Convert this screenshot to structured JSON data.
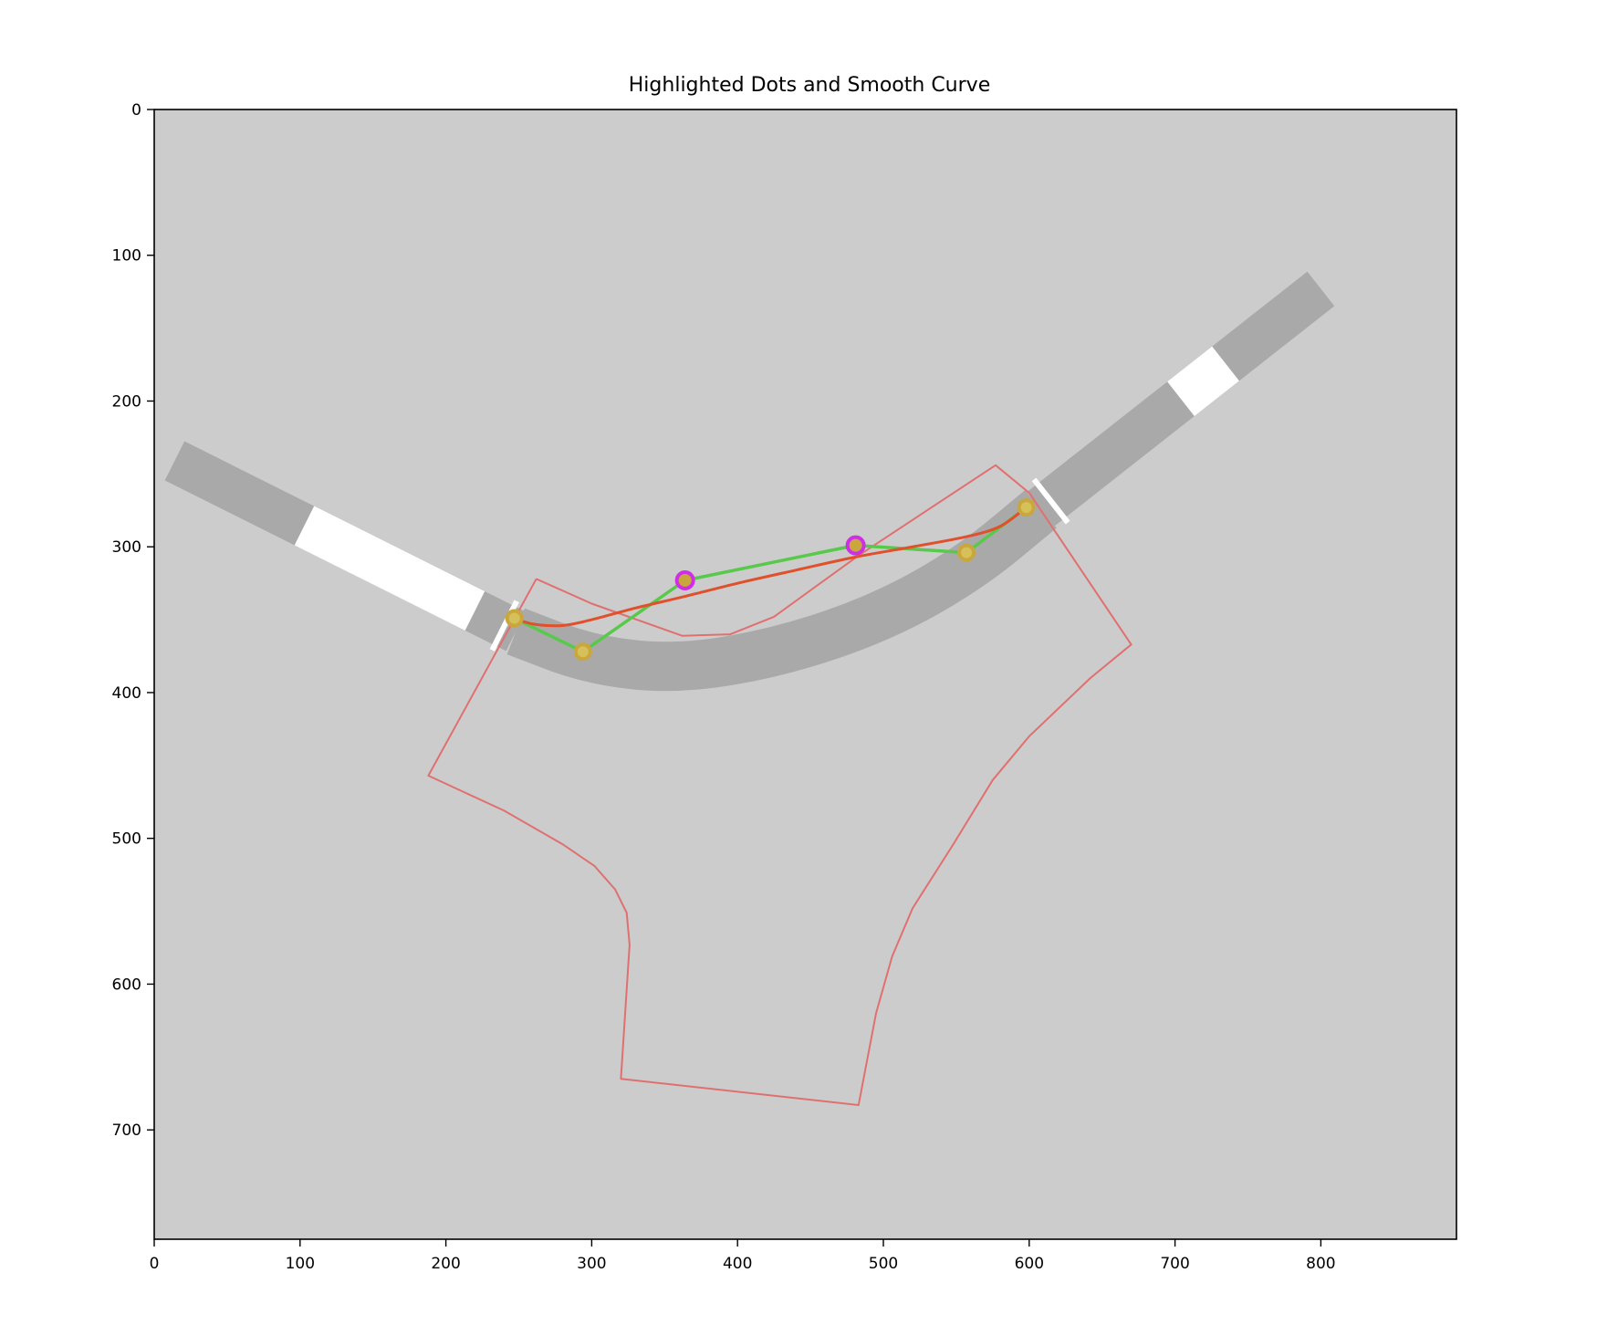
{
  "chart_data": {
    "type": "scatter",
    "title": "Highlighted Dots and Smooth Curve",
    "xlabel": "",
    "ylabel": "",
    "xlim": [
      0,
      893
    ],
    "ylim": [
      775,
      0
    ],
    "x_ticks": [
      0,
      100,
      200,
      300,
      400,
      500,
      600,
      700,
      800
    ],
    "y_ticks": [
      0,
      100,
      200,
      300,
      400,
      500,
      600,
      700
    ],
    "grid": false,
    "background_color": "#cccccc",
    "road": {
      "color": "#a9a9a9",
      "marking_color": "#ffffff",
      "left_band": [
        [
          14,
          241
        ],
        [
          248,
          358
        ]
      ],
      "curve_center": [
        [
          248,
          358
        ],
        [
          300,
          378
        ],
        [
          360,
          384
        ],
        [
          430,
          372
        ],
        [
          500,
          348
        ],
        [
          560,
          314
        ],
        [
          608,
          274
        ]
      ],
      "right_band": [
        [
          608,
          274
        ],
        [
          800,
          123
        ]
      ],
      "white_blocks": [
        {
          "band": "left",
          "from": 0.38,
          "to": 0.88
        },
        {
          "band": "right",
          "from": 0.5,
          "to": 0.66
        }
      ],
      "stop_lines": [
        [
          248,
          358
        ],
        [
          608,
          274
        ]
      ]
    },
    "region_outline": {
      "color": "#e07070",
      "points": [
        [
          262,
          322
        ],
        [
          300,
          339
        ],
        [
          362,
          361
        ],
        [
          395,
          360
        ],
        [
          425,
          348
        ],
        [
          483,
          306
        ],
        [
          577,
          244
        ],
        [
          600,
          263
        ],
        [
          670,
          367
        ],
        [
          642,
          390
        ],
        [
          600,
          430
        ],
        [
          575,
          460
        ],
        [
          548,
          504
        ],
        [
          520,
          548
        ],
        [
          506,
          581
        ],
        [
          495,
          620
        ],
        [
          483,
          683
        ],
        [
          320,
          665
        ],
        [
          326,
          573
        ],
        [
          324,
          551
        ],
        [
          316,
          535
        ],
        [
          302,
          519
        ],
        [
          280,
          504
        ],
        [
          240,
          481
        ],
        [
          188,
          457
        ],
        [
          262,
          322
        ]
      ]
    },
    "series": [
      {
        "style": "line",
        "color": "#58c94a",
        "points": [
          [
            247,
            349
          ],
          [
            294,
            372
          ],
          [
            364,
            323
          ],
          [
            481,
            299
          ],
          [
            557,
            304
          ],
          [
            598,
            273
          ]
        ]
      },
      {
        "style": "smooth-curve",
        "color": "#e0502a",
        "points": [
          [
            247,
            349
          ],
          [
            260,
            353
          ],
          [
            280,
            354
          ],
          [
            300,
            350
          ],
          [
            330,
            342
          ],
          [
            364,
            334
          ],
          [
            400,
            325
          ],
          [
            440,
            316
          ],
          [
            481,
            307
          ],
          [
            520,
            300
          ],
          [
            557,
            293
          ],
          [
            580,
            286
          ],
          [
            598,
            273
          ]
        ]
      },
      {
        "style": "markers",
        "color": "#c9a73c",
        "points": [
          [
            247,
            349
          ],
          [
            294,
            372
          ],
          [
            557,
            304
          ],
          [
            598,
            273
          ]
        ]
      },
      {
        "style": "highlighted-markers",
        "color": "#d02ee6",
        "points": [
          [
            364,
            323
          ],
          [
            481,
            299
          ]
        ]
      }
    ]
  }
}
